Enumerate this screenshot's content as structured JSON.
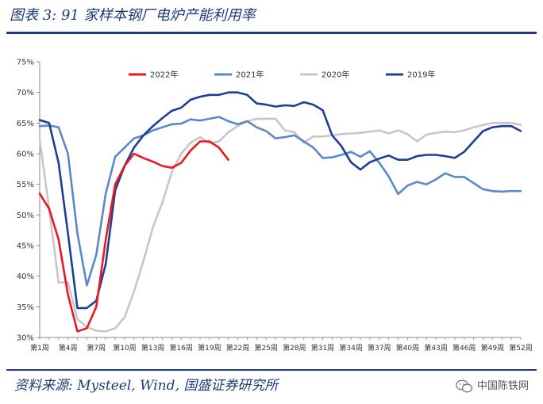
{
  "figure": {
    "title": "图表 3:  91 家样本钢厂电炉产能利用率",
    "source": "资料来源:  Mysteel,  Wind,  国盛证券研究所",
    "watermark": "中国陈铁网",
    "watermark_icon": "wechat-icon"
  },
  "chart_data": {
    "type": "line",
    "title": "91 家样本钢厂电炉产能利用率",
    "xlabel": "",
    "ylabel": "",
    "ylim": [
      30,
      75
    ],
    "yticks": [
      "30%",
      "35%",
      "40%",
      "45%",
      "50%",
      "55%",
      "60%",
      "65%",
      "70%",
      "75%"
    ],
    "y_tick_values": [
      30,
      35,
      40,
      45,
      50,
      55,
      60,
      65,
      70,
      75
    ],
    "x_tick_labels": [
      "第1周",
      "第4周",
      "第7周",
      "第10周",
      "第13周",
      "第16周",
      "第19周",
      "第22周",
      "第25周",
      "第28周",
      "第31周",
      "第34周",
      "第37周",
      "第40周",
      "第43周",
      "第46周",
      "第49周",
      "第52周"
    ],
    "x_tick_weeks": [
      1,
      4,
      7,
      10,
      13,
      16,
      19,
      22,
      25,
      28,
      31,
      34,
      37,
      40,
      43,
      46,
      49,
      52
    ],
    "x_range": [
      1,
      52
    ],
    "grid": false,
    "legend_position": "top",
    "series": [
      {
        "name": "2022年",
        "color": "#e8191f",
        "values": [
          53.5,
          51,
          46,
          37,
          31,
          31.5,
          35,
          46,
          55,
          58,
          60,
          59.3,
          58.7,
          58,
          57.7,
          58.5,
          60.5,
          62,
          62,
          61,
          59
        ]
      },
      {
        "name": "2021年",
        "color": "#5a8ac6",
        "values": [
          64.5,
          64.6,
          64.3,
          60,
          47,
          38.5,
          43.5,
          53.5,
          59.5,
          61,
          62.5,
          63,
          63.8,
          64.3,
          64.8,
          64.9,
          65.6,
          65.4,
          65.7,
          66,
          65.3,
          64.8,
          65.3,
          64.3,
          63.7,
          62.5,
          62.7,
          63,
          62,
          61,
          59.3,
          59.4,
          59.8,
          60.3,
          59.5,
          60.4,
          58.5,
          56.3,
          53.4,
          54.8,
          55.4,
          55,
          55.8,
          56.8,
          56.2,
          56.2,
          55.2,
          54.2,
          53.9,
          53.8,
          53.9,
          53.9
        ]
      },
      {
        "name": "2020年",
        "color": "#c7c7c7",
        "values": [
          62.3,
          51,
          39,
          39,
          33,
          31.7,
          31.1,
          31,
          31.5,
          33.3,
          37.5,
          42.5,
          48,
          52,
          57,
          60,
          61.8,
          62.7,
          61.7,
          62,
          63.5,
          64.5,
          65.3,
          65.7,
          65.7,
          65.7,
          63.8,
          63.5,
          61.8,
          62.8,
          62.8,
          63,
          63.2,
          63.3,
          63.4,
          63.6,
          63.8,
          63.3,
          63.8,
          63.2,
          62,
          63.1,
          63.4,
          63.6,
          63.5,
          63.8,
          64.3,
          64.7,
          65,
          65,
          65,
          64.7
        ]
      },
      {
        "name": "2019年",
        "color": "#1c3f94",
        "values": [
          65.5,
          65,
          58.5,
          47,
          34.8,
          34.8,
          36,
          42,
          54,
          58,
          61,
          63,
          64.5,
          65.8,
          67,
          67.5,
          68.8,
          69.3,
          69.6,
          69.6,
          70,
          70,
          69.6,
          68.2,
          68,
          67.7,
          67.9,
          67.8,
          68.4,
          68,
          67.1,
          63,
          61.2,
          58.6,
          57.4,
          58.6,
          59.2,
          59.7,
          59,
          59,
          59.6,
          59.8,
          59.8,
          59.6,
          59.3,
          60.3,
          62,
          63.7,
          64.3,
          64.5,
          64.5,
          63.7
        ]
      }
    ]
  }
}
